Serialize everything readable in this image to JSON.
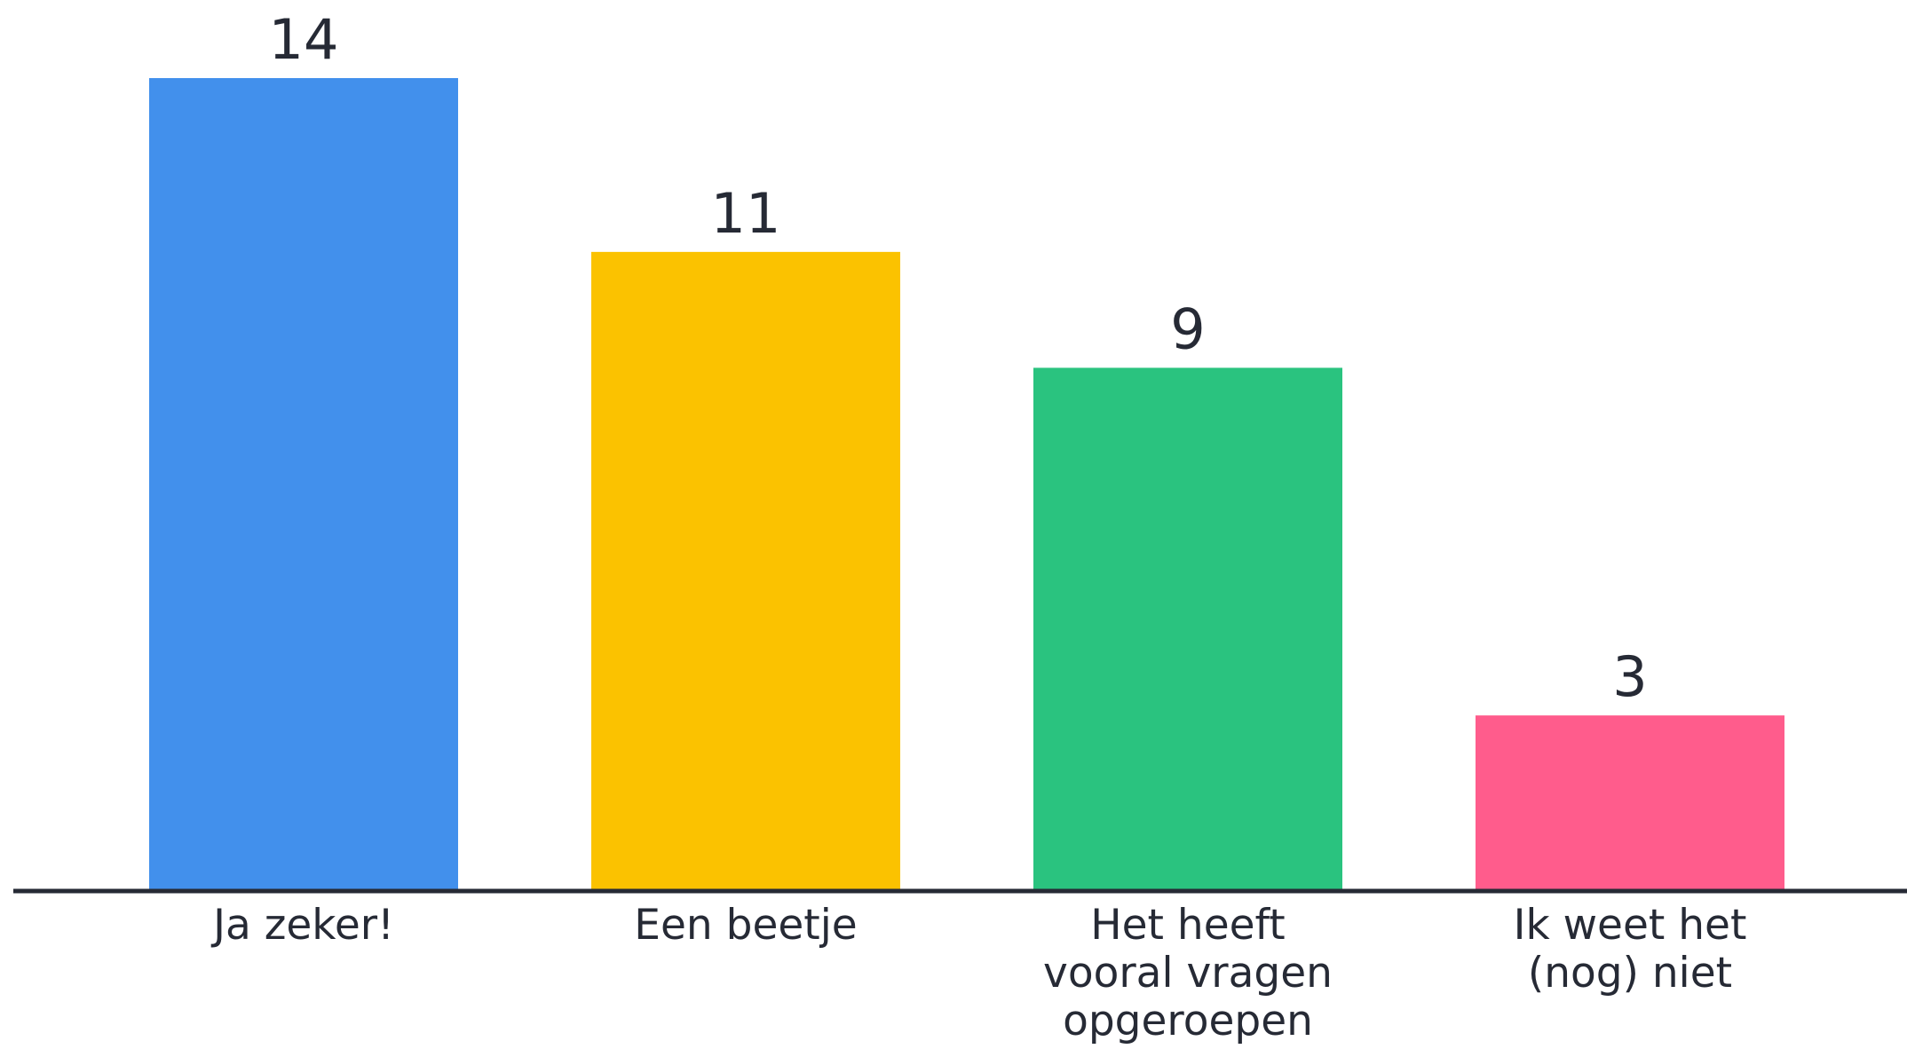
{
  "chart_data": {
    "type": "bar",
    "categories": [
      "Ja zeker!",
      "Een beetje",
      "Het heeft vooral vragen opgeroepen",
      "Ik weet het (nog) niet"
    ],
    "category_label_lines": [
      [
        "Ja zeker!"
      ],
      [
        "Een beetje"
      ],
      [
        "Het heeft",
        "vooral vragen",
        "opgeroepen"
      ],
      [
        "Ik weet het",
        "(nog) niet"
      ]
    ],
    "values": [
      14,
      11,
      9,
      3
    ],
    "colors": [
      "#4290ec",
      "#fbc200",
      "#2ac37f",
      "#ff5c8c"
    ],
    "axis_color": "#262a35",
    "text_color": "#262a35",
    "ylim": [
      0,
      14
    ],
    "grid": false,
    "title": "",
    "xlabel": "",
    "ylabel": ""
  }
}
